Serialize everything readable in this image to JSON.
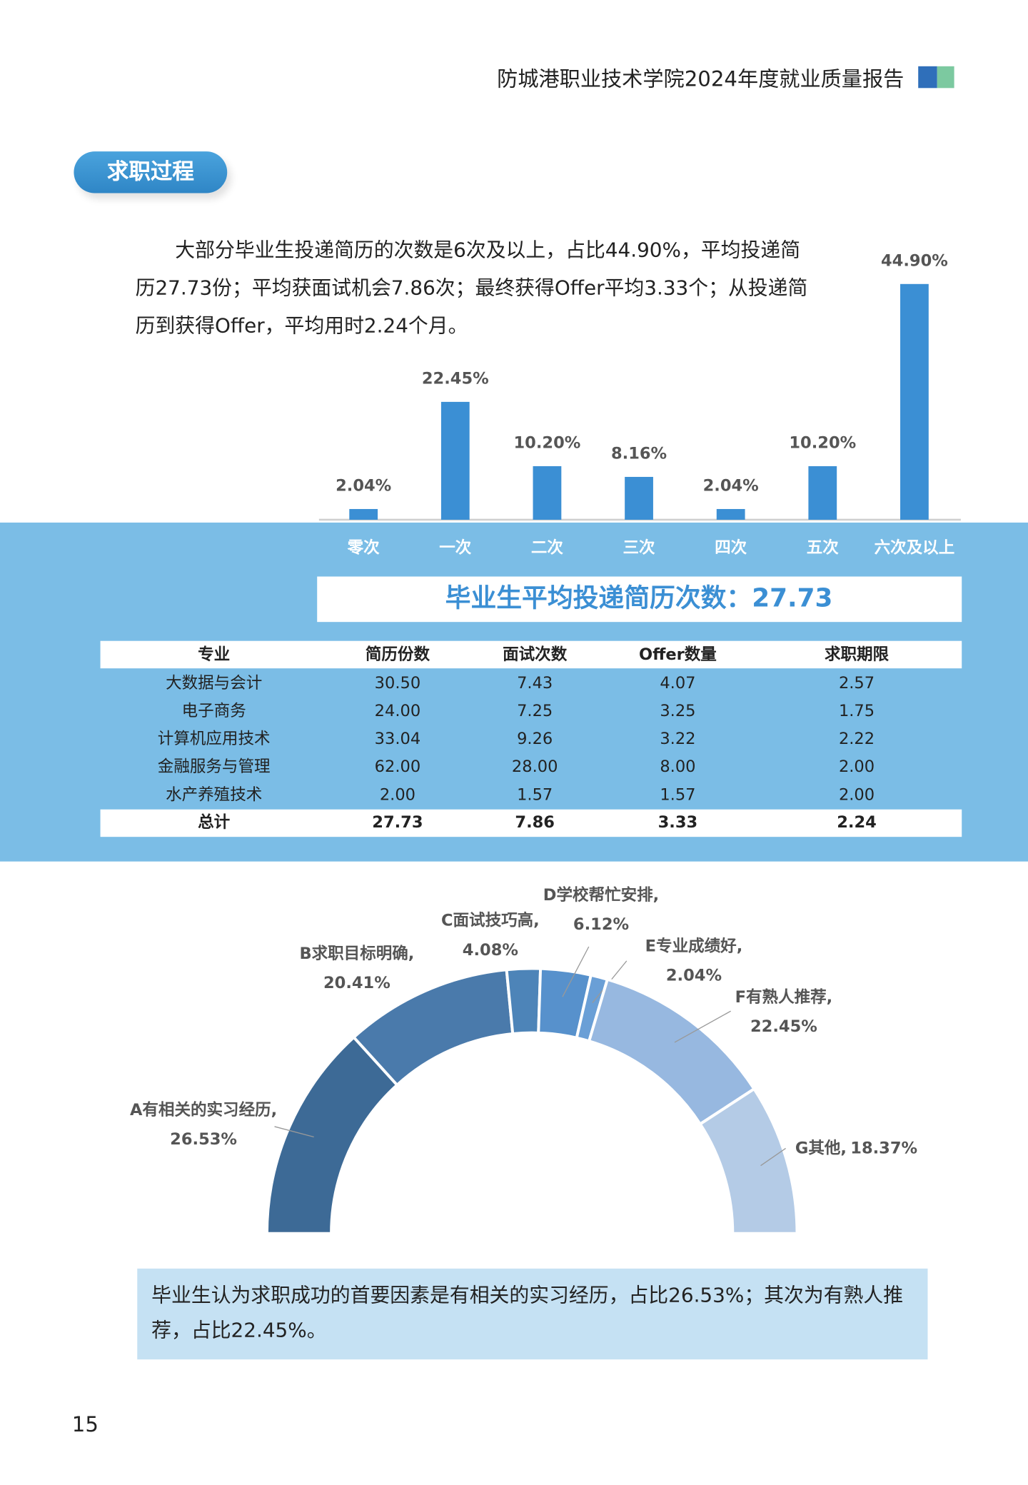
{
  "header": {
    "title": "防城港职业技术学院2024年度就业质量报告"
  },
  "section": {
    "title": "求职过程"
  },
  "paragraphs": [
    "大部分毕业生投递简历的次数是6次及以上，占比44.90%，平均投递简历27.73份；平均获面试机会7.86次；最终获得Offer平均3.33个；从投递简历到获得Offer，平均用时2.24个月。"
  ],
  "chart_data": [
    {
      "type": "bar",
      "color": "#3b8fd4",
      "categories": [
        "零次",
        "一次",
        "二次",
        "三次",
        "四次",
        "五次",
        "六次及以上"
      ],
      "values": [
        2.04,
        22.45,
        10.2,
        8.16,
        2.04,
        10.2,
        44.9
      ],
      "value_labels": [
        "2.04%",
        "22.45%",
        "10.20%",
        "8.16%",
        "2.04%",
        "10.20%",
        "44.90%"
      ]
    },
    {
      "type": "donut",
      "categories": [
        "A有相关的实习经历,",
        "B求职目标明确,",
        "C面试技巧高,",
        "D学校帮忙安排,",
        "E专业成绩好,",
        "F有熟人推荐,",
        "G其他,"
      ],
      "values": [
        26.53,
        20.41,
        4.08,
        6.12,
        2.04,
        22.45,
        18.37
      ],
      "value_labels": [
        "26.53%",
        "20.41%",
        "4.08%",
        "6.12%",
        "2.04%",
        "22.45%",
        "18.37%"
      ],
      "colors": [
        "#3d6a96",
        "#4a7aab",
        "#4d84b8",
        "#5791cc",
        "#6a9fd6",
        "#97b8e0",
        "#b4cbe6"
      ]
    }
  ],
  "banner": "毕业生平均投递简历次数：27.73",
  "table": {
    "columns": [
      "专业",
      "简历份数",
      "面试次数",
      "Offer数量",
      "求职期限"
    ],
    "rows": [
      [
        "大数据与会计",
        "30.50",
        "7.43",
        "4.07",
        "2.57"
      ],
      [
        "电子商务",
        "24.00",
        "7.25",
        "3.25",
        "1.75"
      ],
      [
        "计算机应用技术",
        "33.04",
        "9.26",
        "3.22",
        "2.22"
      ],
      [
        "金融服务与管理",
        "62.00",
        "28.00",
        "8.00",
        "2.00"
      ],
      [
        "水产养殖技术",
        "2.00",
        "1.57",
        "1.57",
        "2.00"
      ]
    ],
    "total": [
      "总计",
      "27.73",
      "7.86",
      "3.33",
      "2.24"
    ]
  },
  "summary": "毕业生认为求职成功的首要因素是有相关的实习经历，占比26.53%；其次为有熟人推荐，占比22.45%。",
  "page_number": "15"
}
